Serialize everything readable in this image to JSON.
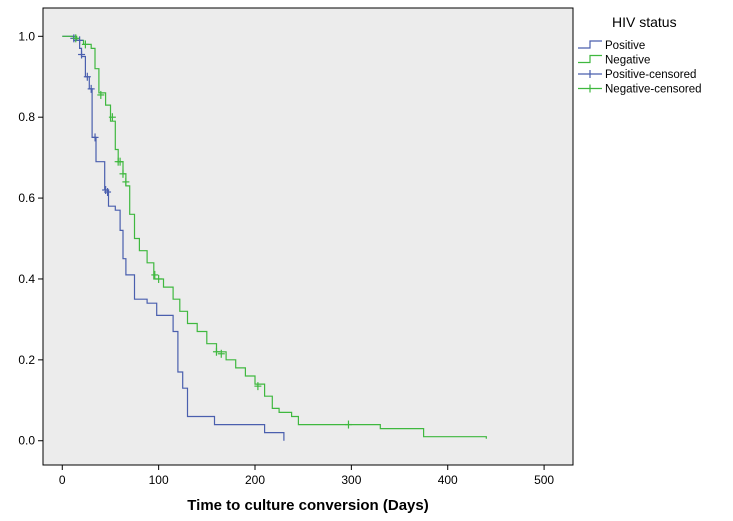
{
  "chart_data": {
    "type": "line",
    "xlabel": "Time to culture conversion (Days)",
    "ylabel": "",
    "xlim": [
      -20,
      530
    ],
    "ylim": [
      -0.06,
      1.07
    ],
    "xticks": [
      0,
      100,
      200,
      300,
      400,
      500
    ],
    "yticks": [
      0.0,
      0.2,
      0.4,
      0.6,
      0.8,
      1.0
    ],
    "xtick_labels": [
      "0",
      "100",
      "200",
      "300",
      "400",
      "500"
    ],
    "ytick_labels": [
      "0.0",
      "0.2",
      "0.4",
      "0.6",
      "0.8",
      "1.0"
    ],
    "grid": false,
    "background": "#ececec",
    "legend": {
      "title": "HIV status",
      "placement": "right-outside",
      "entries": [
        {
          "label": "Positive",
          "kind": "line",
          "color": "#4a5fae"
        },
        {
          "label": "Negative",
          "kind": "line",
          "color": "#3fb83f"
        },
        {
          "label": "Positive-censored",
          "kind": "censor",
          "color": "#4a5fae"
        },
        {
          "label": "Negative-censored",
          "kind": "censor",
          "color": "#3fb83f"
        }
      ]
    },
    "series": [
      {
        "name": "Positive",
        "color": "#4a5fae",
        "steps": [
          [
            0,
            1.0
          ],
          [
            12,
            1.0
          ],
          [
            12,
            0.99
          ],
          [
            18,
            0.99
          ],
          [
            18,
            0.97
          ],
          [
            20,
            0.97
          ],
          [
            20,
            0.95
          ],
          [
            24,
            0.95
          ],
          [
            24,
            0.9
          ],
          [
            28,
            0.9
          ],
          [
            28,
            0.87
          ],
          [
            31,
            0.87
          ],
          [
            31,
            0.75
          ],
          [
            35,
            0.75
          ],
          [
            35,
            0.69
          ],
          [
            44,
            0.69
          ],
          [
            44,
            0.62
          ],
          [
            48,
            0.62
          ],
          [
            48,
            0.58
          ],
          [
            55,
            0.58
          ],
          [
            55,
            0.57
          ],
          [
            60,
            0.57
          ],
          [
            60,
            0.52
          ],
          [
            63,
            0.52
          ],
          [
            63,
            0.45
          ],
          [
            66,
            0.45
          ],
          [
            66,
            0.41
          ],
          [
            75,
            0.41
          ],
          [
            75,
            0.35
          ],
          [
            88,
            0.35
          ],
          [
            88,
            0.34
          ],
          [
            98,
            0.34
          ],
          [
            98,
            0.31
          ],
          [
            115,
            0.31
          ],
          [
            115,
            0.27
          ],
          [
            120,
            0.27
          ],
          [
            120,
            0.17
          ],
          [
            125,
            0.17
          ],
          [
            125,
            0.13
          ],
          [
            130,
            0.13
          ],
          [
            130,
            0.06
          ],
          [
            158,
            0.06
          ],
          [
            158,
            0.04
          ],
          [
            210,
            0.04
          ],
          [
            210,
            0.02
          ],
          [
            230,
            0.02
          ],
          [
            230,
            0.0
          ]
        ],
        "censored": [
          [
            12,
            0.995
          ],
          [
            18,
            0.99
          ],
          [
            20,
            0.955
          ],
          [
            26,
            0.9
          ],
          [
            30,
            0.87
          ],
          [
            34,
            0.75
          ],
          [
            45,
            0.62
          ],
          [
            47,
            0.615
          ]
        ]
      },
      {
        "name": "Negative",
        "color": "#3fb83f",
        "steps": [
          [
            0,
            1.0
          ],
          [
            15,
            1.0
          ],
          [
            15,
            0.99
          ],
          [
            22,
            0.99
          ],
          [
            22,
            0.98
          ],
          [
            30,
            0.98
          ],
          [
            30,
            0.97
          ],
          [
            34,
            0.97
          ],
          [
            34,
            0.92
          ],
          [
            38,
            0.92
          ],
          [
            38,
            0.86
          ],
          [
            45,
            0.86
          ],
          [
            45,
            0.83
          ],
          [
            50,
            0.83
          ],
          [
            50,
            0.79
          ],
          [
            55,
            0.79
          ],
          [
            55,
            0.72
          ],
          [
            58,
            0.72
          ],
          [
            58,
            0.69
          ],
          [
            63,
            0.69
          ],
          [
            63,
            0.66
          ],
          [
            66,
            0.66
          ],
          [
            66,
            0.63
          ],
          [
            70,
            0.63
          ],
          [
            70,
            0.56
          ],
          [
            75,
            0.56
          ],
          [
            75,
            0.5
          ],
          [
            80,
            0.5
          ],
          [
            80,
            0.47
          ],
          [
            88,
            0.47
          ],
          [
            88,
            0.44
          ],
          [
            95,
            0.44
          ],
          [
            95,
            0.4
          ],
          [
            105,
            0.4
          ],
          [
            105,
            0.38
          ],
          [
            115,
            0.38
          ],
          [
            115,
            0.35
          ],
          [
            122,
            0.35
          ],
          [
            122,
            0.32
          ],
          [
            130,
            0.32
          ],
          [
            130,
            0.29
          ],
          [
            140,
            0.29
          ],
          [
            140,
            0.27
          ],
          [
            150,
            0.27
          ],
          [
            150,
            0.24
          ],
          [
            160,
            0.24
          ],
          [
            160,
            0.22
          ],
          [
            170,
            0.22
          ],
          [
            170,
            0.2
          ],
          [
            180,
            0.2
          ],
          [
            180,
            0.18
          ],
          [
            190,
            0.18
          ],
          [
            190,
            0.16
          ],
          [
            200,
            0.16
          ],
          [
            200,
            0.14
          ],
          [
            210,
            0.14
          ],
          [
            210,
            0.11
          ],
          [
            218,
            0.11
          ],
          [
            218,
            0.08
          ],
          [
            225,
            0.08
          ],
          [
            225,
            0.07
          ],
          [
            238,
            0.07
          ],
          [
            238,
            0.06
          ],
          [
            245,
            0.06
          ],
          [
            245,
            0.04
          ],
          [
            330,
            0.04
          ],
          [
            330,
            0.03
          ],
          [
            375,
            0.03
          ],
          [
            375,
            0.01
          ],
          [
            440,
            0.01
          ],
          [
            440,
            0.005
          ]
        ],
        "censored": [
          [
            14,
            0.995
          ],
          [
            24,
            0.98
          ],
          [
            40,
            0.855
          ],
          [
            52,
            0.8
          ],
          [
            58,
            0.69
          ],
          [
            60,
            0.69
          ],
          [
            63,
            0.66
          ],
          [
            66,
            0.64
          ],
          [
            96,
            0.41
          ],
          [
            100,
            0.4
          ],
          [
            160,
            0.22
          ],
          [
            165,
            0.215
          ],
          [
            203,
            0.135
          ],
          [
            297,
            0.04
          ]
        ]
      }
    ]
  }
}
